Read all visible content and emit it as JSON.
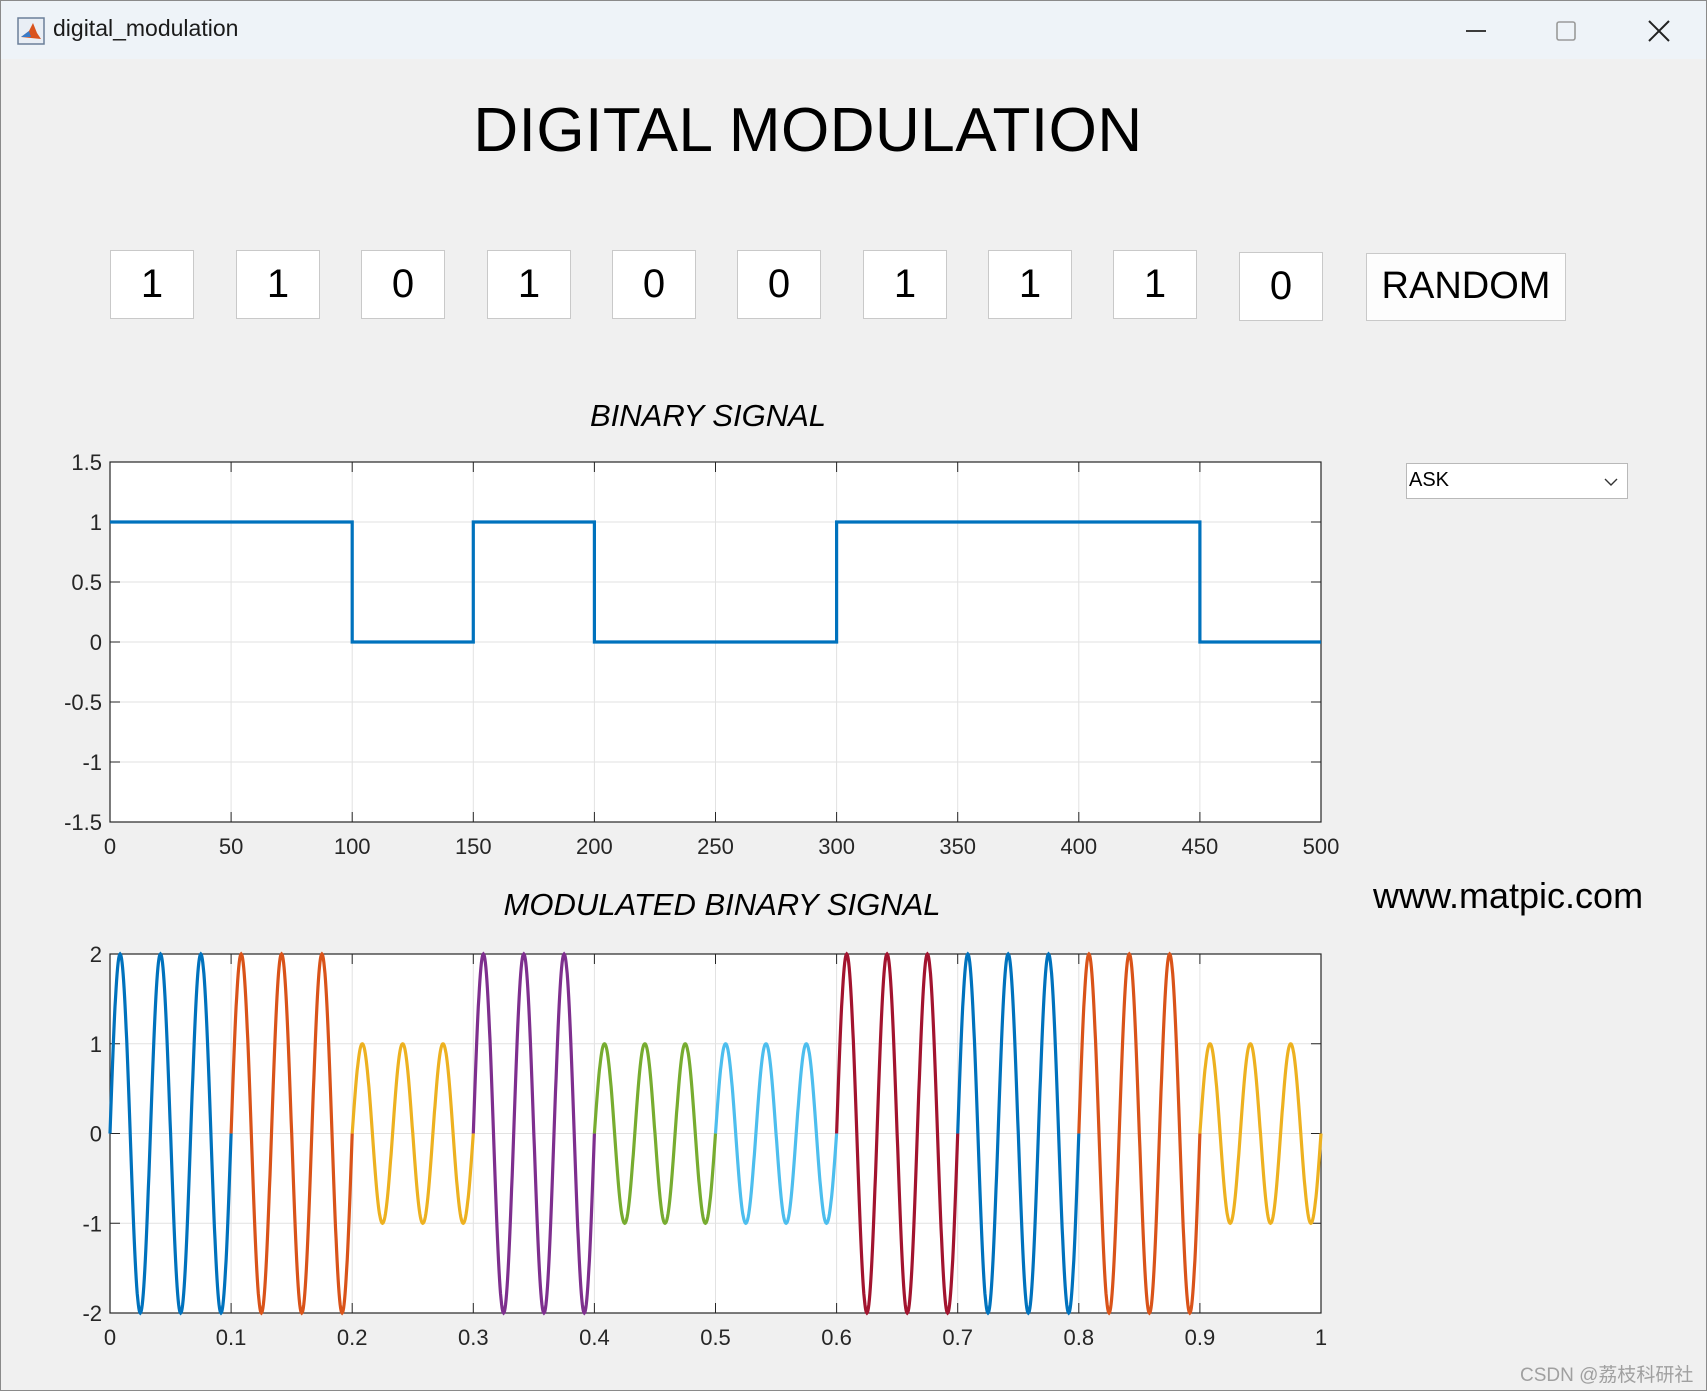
{
  "window": {
    "title": "digital_modulation",
    "icon": "matlab-icon",
    "controls": {
      "minimize": "minimize-icon",
      "maximize": "maximize-icon",
      "close": "close-icon"
    }
  },
  "heading": "DIGITAL MODULATION",
  "bits": [
    "1",
    "1",
    "0",
    "1",
    "0",
    "0",
    "1",
    "1",
    "1",
    "0"
  ],
  "random_button": "RANDOM",
  "modulation_select": {
    "value": "ASK",
    "arrow_icon": "chevron-down-icon"
  },
  "watermark_url": "www.matpic.com",
  "credit": "CSDN @荔枝科研社",
  "colors": {
    "window_bg": "#f0f0f0",
    "plot_bg": "#ffffff",
    "binary_line": "#0072bd",
    "segment_colors": [
      "#0072bd",
      "#d95319",
      "#edb120",
      "#7e2f8e",
      "#77ac30",
      "#4dbeee",
      "#a2142f",
      "#0072bd",
      "#d95319",
      "#edb120"
    ]
  },
  "chart_data": [
    {
      "type": "line",
      "title": "BINARY SIGNAL",
      "xlim": [
        0,
        500
      ],
      "ylim": [
        -1.5,
        1.5
      ],
      "xticks": [
        "0",
        "50",
        "100",
        "150",
        "200",
        "250",
        "300",
        "350",
        "400",
        "450",
        "500"
      ],
      "yticks": [
        "1.5",
        "1",
        "0.5",
        "0",
        "-0.5",
        "-1",
        "-1.5"
      ],
      "grid": true,
      "x": [
        0,
        100,
        100,
        150,
        150,
        200,
        200,
        300,
        300,
        450,
        450,
        500
      ],
      "y": [
        1,
        1,
        0,
        0,
        1,
        1,
        0,
        0,
        1,
        1,
        0,
        0
      ]
    },
    {
      "type": "line",
      "title": "MODULATED BINARY SIGNAL",
      "xlim": [
        0,
        1
      ],
      "ylim": [
        -2,
        2
      ],
      "xticks": [
        "0",
        "0.1",
        "0.2",
        "0.3",
        "0.4",
        "0.5",
        "0.6",
        "0.7",
        "0.8",
        "0.9",
        "1"
      ],
      "yticks": [
        "2",
        "1",
        "0",
        "-1",
        "-2"
      ],
      "grid": true,
      "cycles_per_bit": 3,
      "series": [
        {
          "x_start": 0.0,
          "x_end": 0.1,
          "amplitude": 2
        },
        {
          "x_start": 0.1,
          "x_end": 0.2,
          "amplitude": 2
        },
        {
          "x_start": 0.2,
          "x_end": 0.3,
          "amplitude": 1
        },
        {
          "x_start": 0.3,
          "x_end": 0.4,
          "amplitude": 2
        },
        {
          "x_start": 0.4,
          "x_end": 0.5,
          "amplitude": 1
        },
        {
          "x_start": 0.5,
          "x_end": 0.6,
          "amplitude": 1
        },
        {
          "x_start": 0.6,
          "x_end": 0.7,
          "amplitude": 2
        },
        {
          "x_start": 0.7,
          "x_end": 0.8,
          "amplitude": 2
        },
        {
          "x_start": 0.8,
          "x_end": 0.9,
          "amplitude": 2
        },
        {
          "x_start": 0.9,
          "x_end": 1.0,
          "amplitude": 1
        }
      ]
    }
  ]
}
